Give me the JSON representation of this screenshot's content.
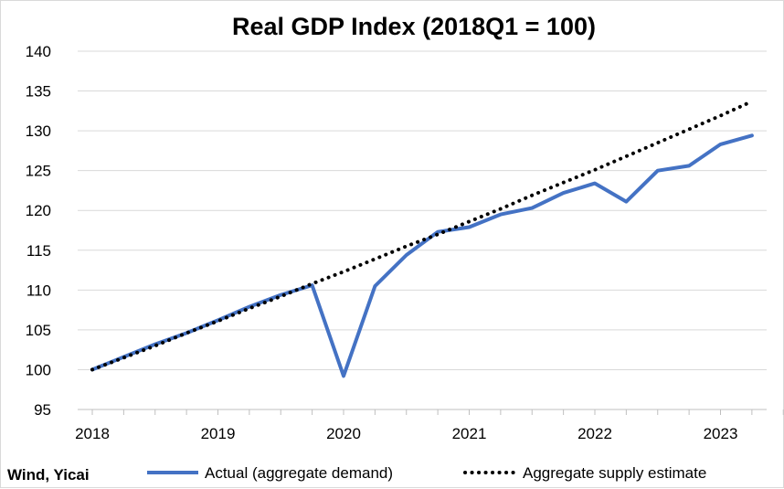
{
  "chart_data": {
    "type": "line",
    "title": "Real GDP Index (2018Q1 = 100)",
    "xlabel": "",
    "ylabel": "",
    "ylim": [
      95,
      140
    ],
    "y_ticks": [
      "95",
      "100",
      "105",
      "110",
      "115",
      "120",
      "125",
      "130",
      "135",
      "140"
    ],
    "x_tick_labels": [
      "2018",
      "2019",
      "2020",
      "2021",
      "2022",
      "2023"
    ],
    "grid": true,
    "legend_position": "bottom",
    "x": [
      "2018Q1",
      "2018Q2",
      "2018Q3",
      "2018Q4",
      "2019Q1",
      "2019Q2",
      "2019Q3",
      "2019Q4",
      "2020Q1",
      "2020Q2",
      "2020Q3",
      "2020Q4",
      "2021Q1",
      "2021Q2",
      "2021Q3",
      "2021Q4",
      "2022Q1",
      "2022Q2",
      "2022Q3",
      "2022Q4",
      "2023Q1",
      "2023Q2"
    ],
    "series": [
      {
        "name": "Actual (aggregate demand)",
        "style": "solid",
        "color": "#4472c4",
        "values": [
          100.0,
          101.6,
          103.2,
          104.6,
          106.2,
          107.9,
          109.4,
          110.6,
          99.2,
          110.5,
          114.4,
          117.3,
          117.9,
          119.5,
          120.3,
          122.2,
          123.4,
          121.1,
          125.0,
          125.6,
          128.3,
          129.4
        ]
      },
      {
        "name": "Aggregate supply estimate",
        "style": "dotted",
        "color": "#000000",
        "values": [
          100.0,
          101.5,
          103.0,
          104.6,
          106.1,
          107.7,
          109.2,
          110.8,
          112.3,
          113.9,
          115.5,
          117.0,
          118.6,
          120.2,
          121.9,
          123.5,
          125.1,
          126.8,
          128.5,
          130.2,
          131.9,
          133.7
        ]
      }
    ]
  },
  "source_note": "Wind, Yicai"
}
